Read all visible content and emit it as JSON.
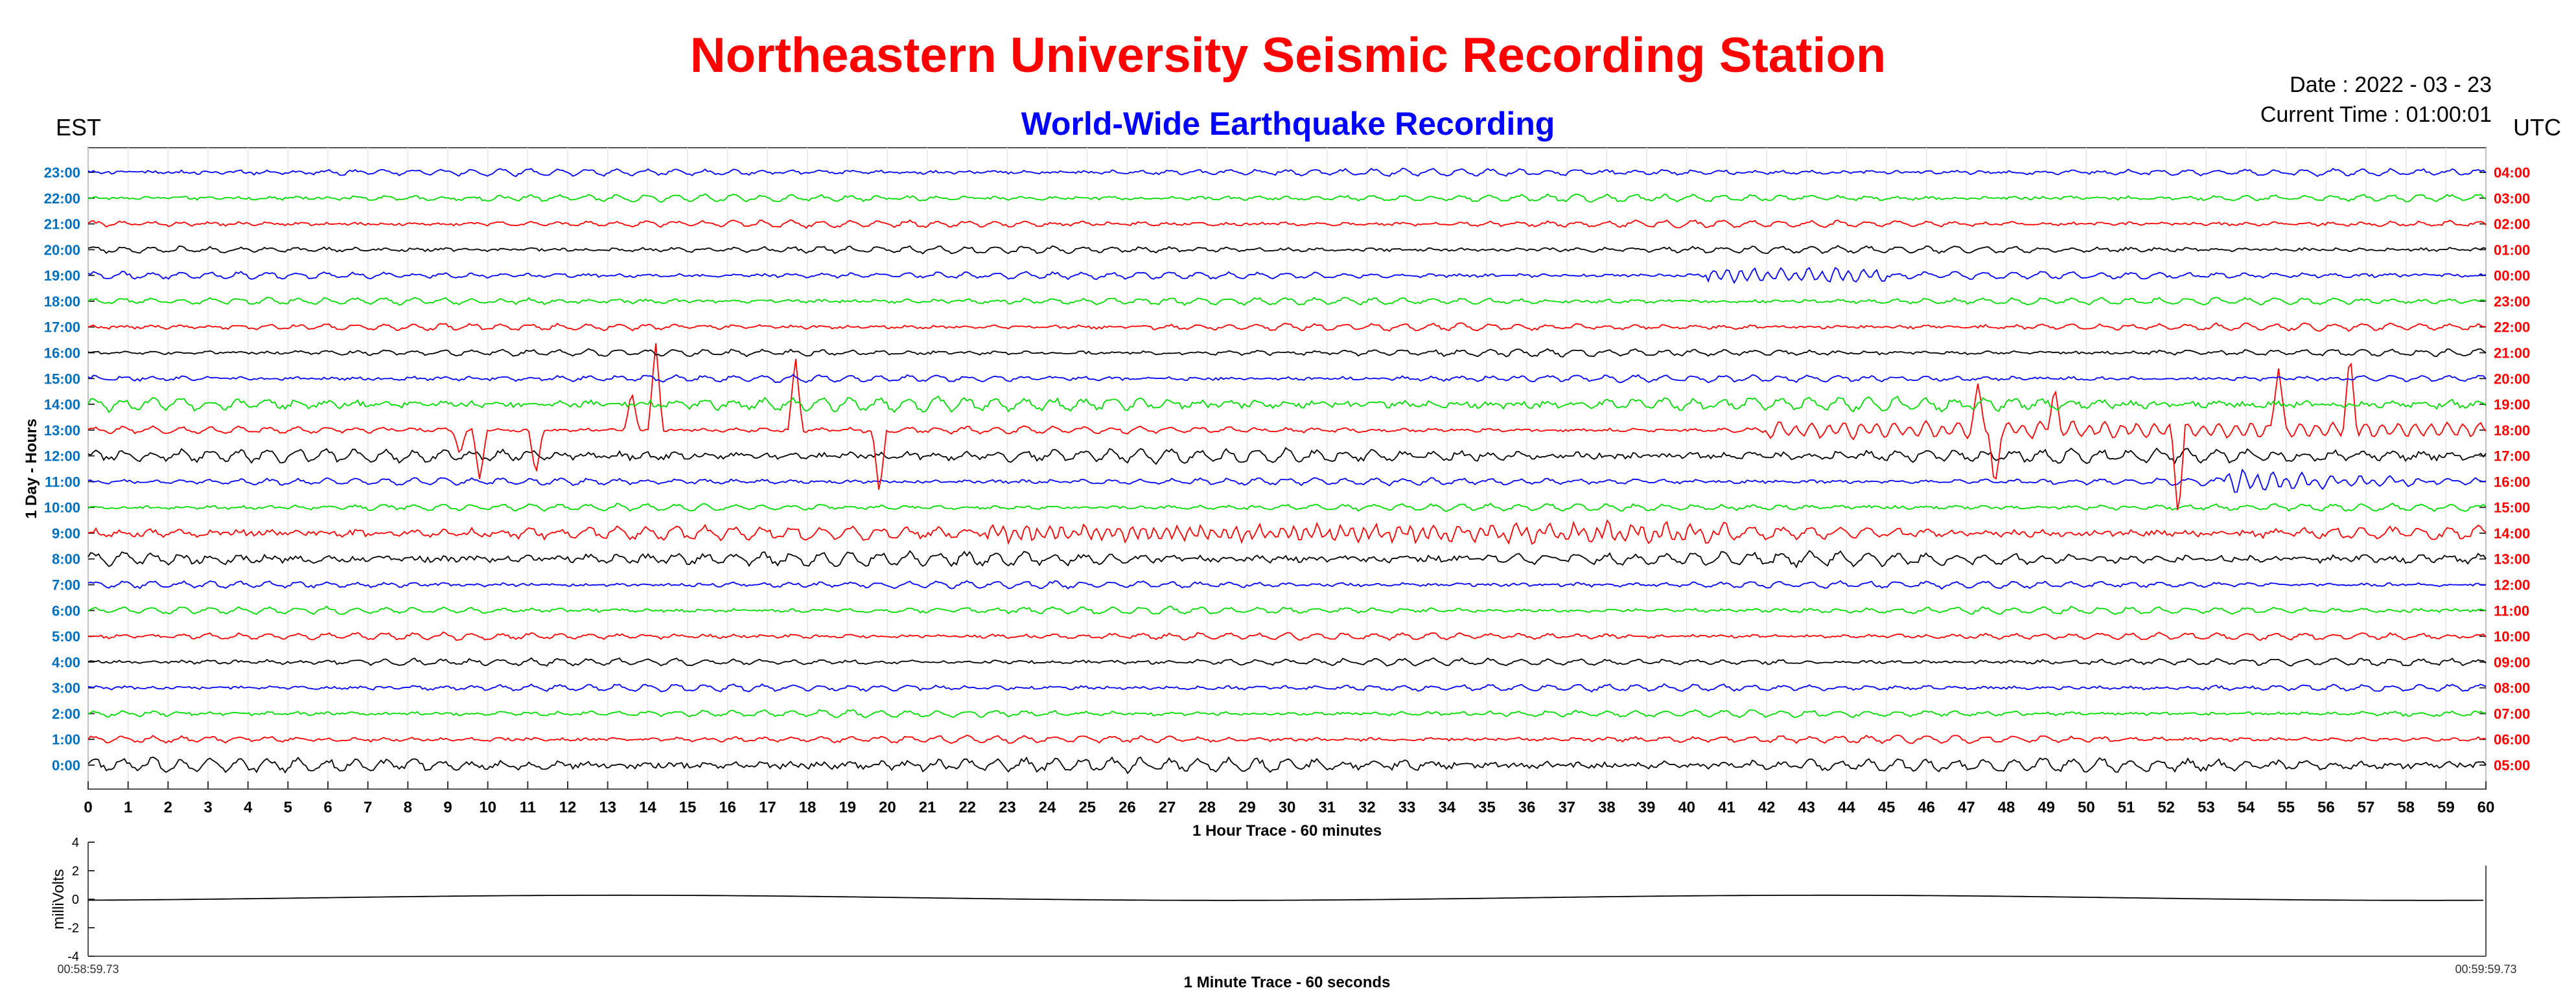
{
  "header": {
    "title": "Northeastern University Seismic Recording Station",
    "subtitle": "World-Wide Earthquake Recording",
    "left_zone": "EST",
    "right_zone": "UTC",
    "date": "Date : 2022 - 03 - 23",
    "current_time": "Current Time : 01:00:01"
  },
  "colors": {
    "title": "#ff0000",
    "subtitle": "#0000ff",
    "left_ticks": "#0070c0",
    "right_ticks": "#ff0000",
    "trace_cycle": [
      "#000000",
      "#ff0000",
      "#00dd00",
      "#0000ff"
    ]
  },
  "chart_data": [
    {
      "type": "line",
      "title": "",
      "xlabel": "1 Hour Trace - 60 minutes",
      "ylabel": "1 Day - Hours",
      "xlim": [
        0,
        60
      ],
      "xticks": [
        0,
        1,
        2,
        3,
        4,
        5,
        6,
        7,
        8,
        9,
        10,
        11,
        12,
        13,
        14,
        15,
        16,
        17,
        18,
        19,
        20,
        21,
        22,
        23,
        24,
        25,
        26,
        27,
        28,
        29,
        30,
        31,
        32,
        33,
        34,
        35,
        36,
        37,
        38,
        39,
        40,
        41,
        42,
        43,
        44,
        45,
        46,
        47,
        48,
        49,
        50,
        51,
        52,
        53,
        54,
        55,
        56,
        57,
        58,
        59,
        60
      ],
      "left_ticks": [
        "0:00",
        "1:00",
        "2:00",
        "3:00",
        "4:00",
        "5:00",
        "6:00",
        "7:00",
        "8:00",
        "9:00",
        "10:00",
        "11:00",
        "12:00",
        "13:00",
        "14:00",
        "15:00",
        "16:00",
        "17:00",
        "18:00",
        "19:00",
        "20:00",
        "21:00",
        "22:00",
        "23:00"
      ],
      "right_ticks": [
        "05:00",
        "06:00",
        "07:00",
        "08:00",
        "09:00",
        "10:00",
        "11:00",
        "12:00",
        "13:00",
        "14:00",
        "15:00",
        "16:00",
        "17:00",
        "18:00",
        "19:00",
        "20:00",
        "21:00",
        "22:00",
        "23:00",
        "00:00",
        "01:00",
        "02:00",
        "03:00",
        "04:00"
      ],
      "grid": true,
      "events": [
        {
          "hour": 13,
          "minute": 9.3,
          "amplitude": -0.9
        },
        {
          "hour": 13,
          "minute": 9.8,
          "amplitude": -2.0
        },
        {
          "hour": 13,
          "minute": 11.2,
          "amplitude": -1.8
        },
        {
          "hour": 13,
          "minute": 13.6,
          "amplitude": 1.5
        },
        {
          "hour": 13,
          "minute": 14.2,
          "amplitude": 3.5
        },
        {
          "hour": 13,
          "minute": 17.7,
          "amplitude": 2.8
        },
        {
          "hour": 13,
          "minute": 19.8,
          "amplitude": -2.6
        },
        {
          "hour": 13,
          "minute": 47.3,
          "amplitude": 1.8
        },
        {
          "hour": 13,
          "minute": 47.7,
          "amplitude": -2.2
        },
        {
          "hour": 13,
          "minute": 49.2,
          "amplitude": 1.6
        },
        {
          "hour": 13,
          "minute": 52.3,
          "amplitude": -3.2
        },
        {
          "hour": 13,
          "minute": 54.8,
          "amplitude": 2.6
        },
        {
          "hour": 13,
          "minute": 56.6,
          "amplitude": 2.8
        }
      ]
    },
    {
      "type": "line",
      "title": "",
      "xlabel": "1 Minute Trace  - 60 seconds",
      "ylabel": "milliVolts",
      "ylim": [
        -4,
        4
      ],
      "yticks": [
        "4",
        "2",
        "0",
        "-2",
        "-4"
      ],
      "x_start_label": "00:58:59.73",
      "x_end_label": "00:59:59.73",
      "grid": false
    }
  ]
}
